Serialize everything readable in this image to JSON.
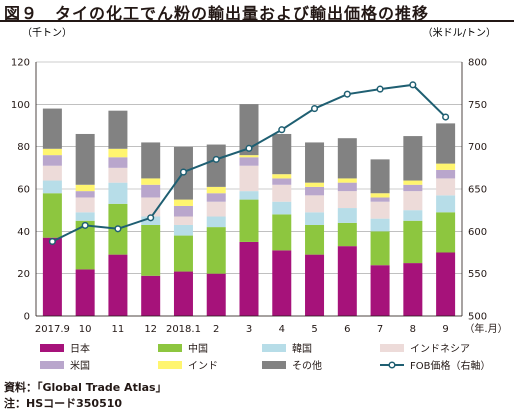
{
  "title": "図９　タイの化工でん粉の輸出量および輸出価格の推移",
  "notes": [
    "資料：「Global Trade Atlas」",
    "注：HSコード350510"
  ],
  "chart_data": {
    "type": "bar",
    "stacked": true,
    "left_axis_unit": "（千トン）",
    "right_axis_unit": "（米ドル/トン）",
    "x_axis_unit": "（年.月）",
    "categories": [
      "2017.9",
      "10",
      "11",
      "12",
      "2018.1",
      "2",
      "3",
      "4",
      "5",
      "6",
      "7",
      "8",
      "9"
    ],
    "ylim_left": [
      0,
      120
    ],
    "yticks_left": [
      0,
      20,
      40,
      60,
      80,
      100,
      120
    ],
    "ylim_right": [
      500,
      800
    ],
    "yticks_right": [
      500,
      550,
      600,
      650,
      700,
      750,
      800
    ],
    "grid": true,
    "legend_position": "bottom",
    "series": [
      {
        "name": "日本",
        "color": "#a6127a",
        "values": [
          37,
          22,
          29,
          19,
          21,
          20,
          35,
          31,
          29,
          33,
          24,
          25,
          30
        ]
      },
      {
        "name": "中国",
        "color": "#8dc63f",
        "values": [
          21,
          23,
          24,
          24,
          17,
          22,
          20,
          17,
          14,
          11,
          16,
          20,
          19
        ]
      },
      {
        "name": "韓国",
        "color": "#b7dde8",
        "values": [
          6,
          4,
          10,
          4,
          5,
          5,
          4,
          6,
          6,
          7,
          6,
          5,
          8
        ]
      },
      {
        "name": "インドネシア",
        "color": "#eddbd9",
        "values": [
          7,
          7,
          7,
          9,
          4,
          7,
          12,
          8,
          8,
          8,
          8,
          9,
          8
        ]
      },
      {
        "name": "米国",
        "color": "#b9a6cc",
        "values": [
          5,
          3,
          5,
          6,
          5,
          4,
          4,
          3,
          4,
          4,
          2,
          3,
          4
        ]
      },
      {
        "name": "インド",
        "color": "#fff56f",
        "values": [
          3,
          3,
          4,
          3,
          3,
          3,
          1,
          2,
          2,
          2,
          2,
          2,
          3
        ]
      },
      {
        "name": "その他",
        "color": "#828282",
        "values": [
          19,
          24,
          18,
          17,
          25,
          20,
          24,
          19,
          19,
          19,
          16,
          21,
          19
        ]
      }
    ],
    "line_series": {
      "name": "FOB価格（右軸）",
      "color": "#1f5f72",
      "axis": "right",
      "values": [
        588,
        607,
        603,
        616,
        670,
        685,
        698,
        720,
        745,
        762,
        768,
        773,
        735
      ]
    }
  }
}
